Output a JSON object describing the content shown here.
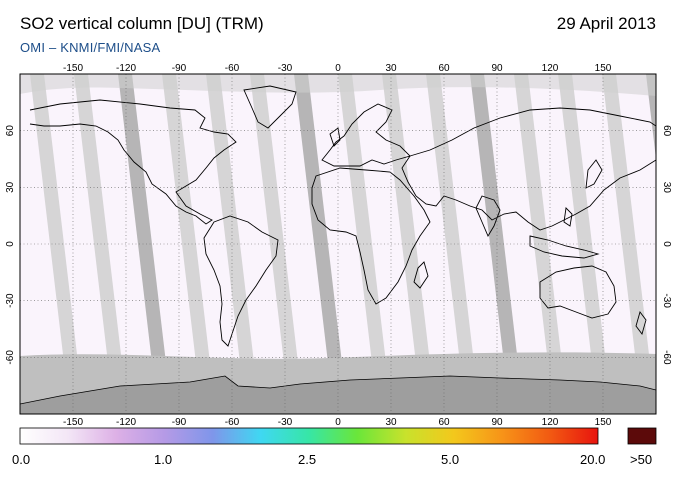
{
  "header": {
    "title": "SO2 vertical column [DU] (TRM)",
    "date": "29 April 2013",
    "credit": "OMI  –  KNMI/FMI/NASA"
  },
  "map": {
    "lon_ticks": [
      "-150",
      "-120",
      "-90",
      "-60",
      "-30",
      "0",
      "30",
      "60",
      "90",
      "120",
      "150"
    ],
    "lat_ticks": [
      "60",
      "30",
      "0",
      "-30",
      "-60"
    ],
    "lon_values": [
      -150,
      -120,
      -90,
      -60,
      -30,
      0,
      30,
      60,
      90,
      120,
      150
    ],
    "lat_values": [
      60,
      30,
      0,
      -30,
      -60
    ],
    "grid": true,
    "colors": {
      "swath_gap": "#cfcfcf",
      "swath_overlap": "#a9a9a9",
      "polar_gap": "#bfbfbf",
      "antarctica": "#9e9e9e",
      "coastline": "#000000"
    }
  },
  "colorbar": {
    "labels": [
      "0.0",
      "1.0",
      "2.5",
      "5.0",
      "20.0"
    ],
    "overflow_label": ">50",
    "stops": [
      "#ffffff",
      "#f3e6f6",
      "#ddb0e6",
      "#b59ae6",
      "#7f96ea",
      "#3fd8f2",
      "#37e6a6",
      "#6ae63a",
      "#c8e22c",
      "#f3c81c",
      "#f79418",
      "#f25a12",
      "#e8140e"
    ],
    "overflow_color": "#5c0a0a"
  }
}
